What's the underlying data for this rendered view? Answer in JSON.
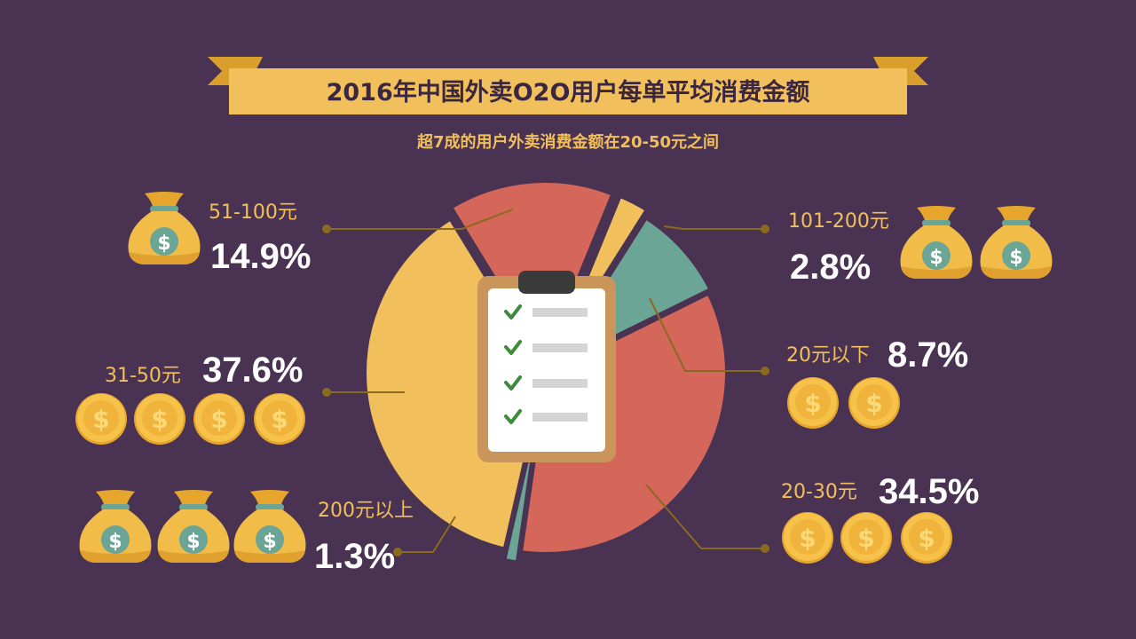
{
  "title": "2016年中国外卖O2O用户每单平均消费金额",
  "subtitle": "超7成的用户外卖消费金额在20-50元之间",
  "colors": {
    "background": "#4a3352",
    "yellow": "#f1c05c",
    "coral": "#d4665a",
    "teal": "#6aa595",
    "leader": "#8a6a1e"
  },
  "chart_data": {
    "type": "pie",
    "title": "2016年中国外卖O2O用户每单平均消费金额",
    "subtitle": "超7成的用户外卖消费金额在20-50元之间",
    "slices": [
      {
        "label": "51-100元",
        "value": 14.9,
        "pct_text": "14.9%",
        "color": "#d4665a"
      },
      {
        "label": "101-200元",
        "value": 2.8,
        "pct_text": "2.8%",
        "color": "#f1c05c"
      },
      {
        "label": "20元以下",
        "value": 8.7,
        "pct_text": "8.7%",
        "color": "#6aa595"
      },
      {
        "label": "20-30元",
        "value": 34.5,
        "pct_text": "34.5%",
        "color": "#d4665a"
      },
      {
        "label": "200元以上",
        "value": 1.3,
        "pct_text": "1.3%",
        "color": "#6aa595"
      },
      {
        "label": "31-50元",
        "value": 37.6,
        "pct_text": "37.6%",
        "color": "#f1c05c"
      }
    ],
    "icons": {
      "51-100元": {
        "icon": "money-bag",
        "count": 1
      },
      "101-200元": {
        "icon": "money-bag",
        "count": 2
      },
      "20元以下": {
        "icon": "coin",
        "count": 2
      },
      "20-30元": {
        "icon": "coin",
        "count": 3
      },
      "31-50元": {
        "icon": "coin",
        "count": 4
      },
      "200元以上": {
        "icon": "money-bag",
        "count": 3
      }
    },
    "center_icon": "clipboard-checklist-icon",
    "legend": "none",
    "grid": false
  }
}
